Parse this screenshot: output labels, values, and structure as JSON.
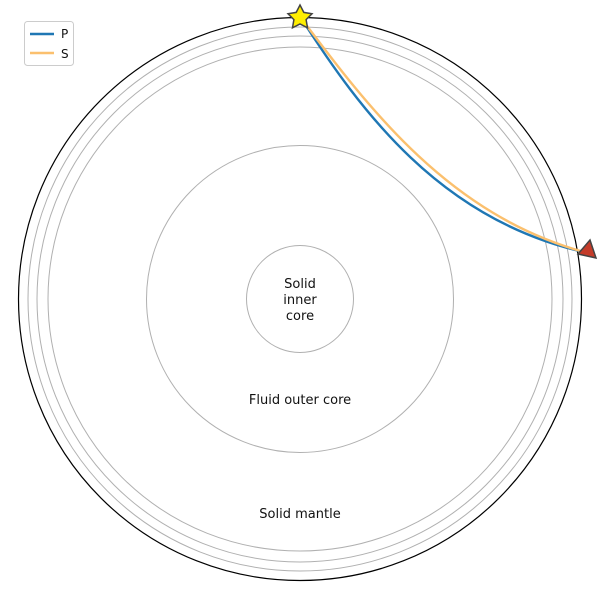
{
  "diagram": {
    "region_labels": {
      "inner_core": [
        "Solid",
        "inner",
        "core"
      ],
      "outer_core": "Fluid outer core",
      "mantle": "Solid mantle"
    },
    "legend": {
      "entries": [
        {
          "label": "P",
          "color": "#1f77b4"
        },
        {
          "label": "S",
          "color": "#fbc06e"
        }
      ]
    },
    "markers": {
      "source": {
        "icon": "star-icon",
        "color": "#ffee00"
      },
      "receiver": {
        "icon": "triangle-icon",
        "color": "#c43c2a"
      }
    },
    "colors": {
      "outline": "#000000",
      "discontinuity": "#b0b0b0",
      "p_ray": "#1f77b4",
      "s_ray": "#fbc06e"
    }
  }
}
